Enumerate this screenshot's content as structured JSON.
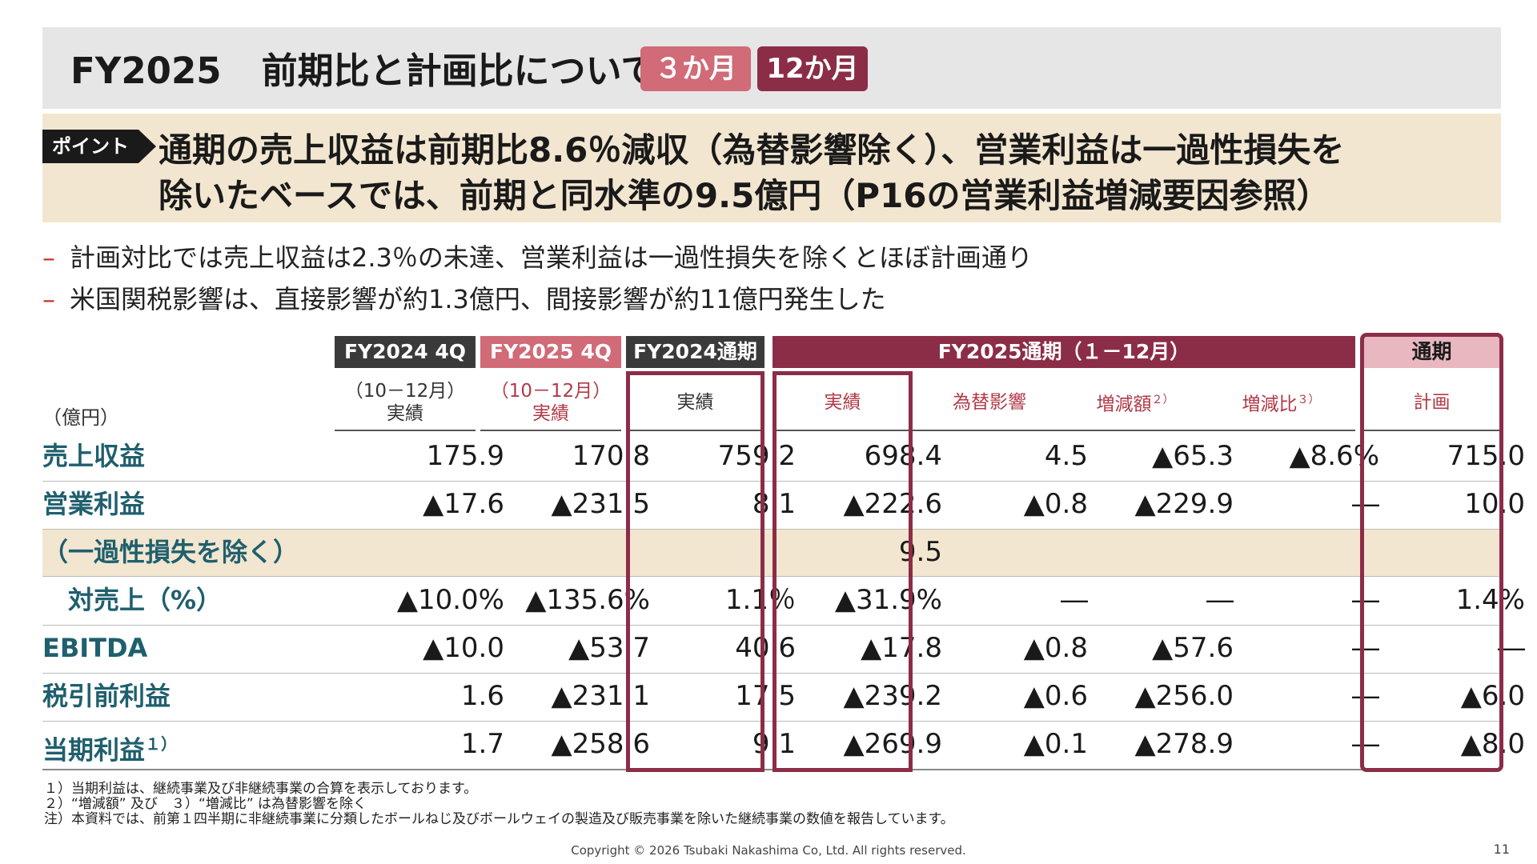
{
  "header": {
    "title_fy": "FY2025",
    "title_main": "前期比と計画比について",
    "tab_3m": "３か月",
    "tab_12m": "12か月"
  },
  "point": {
    "tag": "ポイント",
    "line1": "通期の売上収益は前期比8.6％減収（為替影響除く）、営業利益は一過性損失を",
    "line2": "除いたベースでは、前期と同水準の9.5億円（P16の営業利益増減要因参照）"
  },
  "bullets": [
    "計画対比では売上収益は2.3％の未達、営業利益は一過性損失を除くとほぼ計画通り",
    "米国関税影響は、直接影響が約1.3億円、間接影響が約11億円発生した"
  ],
  "bullet_dash": "–",
  "colors": {
    "accent": "#8c2d47",
    "accent_light": "#d06b77",
    "dark": "#3a3a3a",
    "highlight": "#f2e6d0",
    "label": "#1f5f6e"
  },
  "table": {
    "unit": "（億円）",
    "headers": {
      "fy2024_4q": "FY2024 4Q",
      "fy2025_4q": "FY2025 4Q",
      "fy2024_full": "FY2024通期",
      "fy2025_full": "FY2025通期（１－12月）",
      "plan_full": "通期"
    },
    "subheaders": {
      "period_4q_2024": "（10－12月）",
      "actual_4q_2024": "実績",
      "period_4q_2025": "（10－12月）",
      "actual_4q_2025": "実績",
      "actual_2024_full": "実績",
      "actual_2025_full": "実績",
      "fx_impact": "為替影響",
      "change_amount": "増減額",
      "change_amount_note": "２）",
      "change_ratio": "増減比",
      "change_ratio_note": "３）",
      "plan": "計画"
    },
    "rows": [
      {
        "label": "売上収益",
        "note": "",
        "values": [
          "175.9",
          "170.8",
          "759.2",
          "698.4",
          "4.5",
          "▲65.3",
          "▲8.6%",
          "715.0"
        ]
      },
      {
        "label": "営業利益",
        "note": "",
        "values": [
          "▲17.6",
          "▲231.5",
          "8.1",
          "▲222.6",
          "▲0.8",
          "▲229.9",
          "―",
          "10.0"
        ]
      },
      {
        "label": "（一過性損失を除く）",
        "note": "",
        "values": [
          "",
          "",
          "",
          "9.5",
          "",
          "",
          "",
          ""
        ]
      },
      {
        "label": "対売上（%）",
        "note": "",
        "values": [
          "▲10.0%",
          "▲135.6%",
          "1.1％",
          "▲31.9%",
          "―",
          "―",
          "―",
          "1.4%"
        ]
      },
      {
        "label": "EBITDA",
        "note": "",
        "values": [
          "▲10.0",
          "▲53.7",
          "40.6",
          "▲17.8",
          "▲0.8",
          "▲57.6",
          "―",
          "―"
        ]
      },
      {
        "label": "税引前利益",
        "note": "",
        "values": [
          "1.6",
          "▲231.1",
          "17.5",
          "▲239.2",
          "▲0.6",
          "▲256.0",
          "―",
          "▲6.0"
        ]
      },
      {
        "label": "当期利益",
        "note": "１）",
        "values": [
          "1.7",
          "▲258.6",
          "9.1",
          "▲269.9",
          "▲0.1",
          "▲278.9",
          "―",
          "▲8.0"
        ]
      }
    ]
  },
  "notes": [
    "１）当期利益は、継続事業及び非継続事業の合算を表示しております。",
    "２）“増減額” 及び　３）“増減比” は為替影響を除く",
    "注）本資料では、前第１四半期に非継続事業に分類したボールねじ及びボールウェイの製造及び販売事業を除いた継続事業の数値を報告しています。"
  ],
  "footer": {
    "copyright": "Copyright © 2026 Tsubaki Nakashima Co, Ltd. All rights reserved.",
    "page_number": "11"
  }
}
